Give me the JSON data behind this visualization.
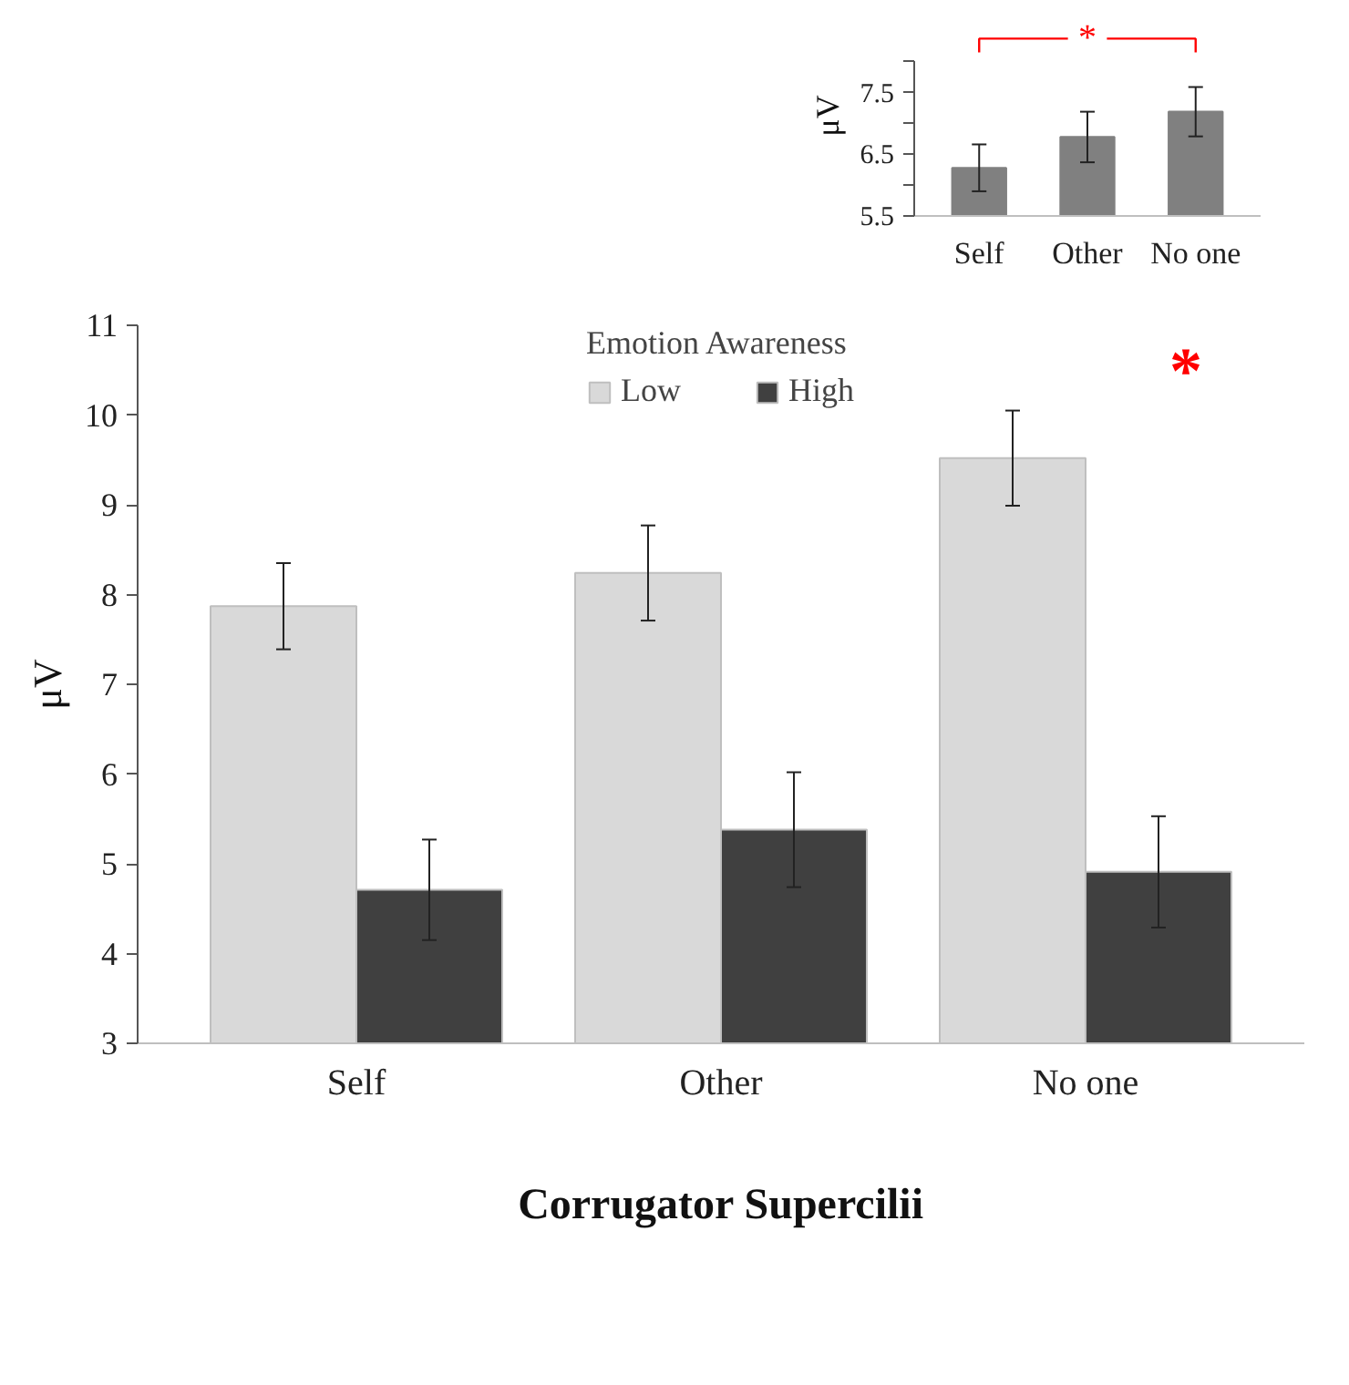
{
  "chart_data": [
    {
      "type": "bar",
      "categories": [
        "Self",
        "Other",
        "No one"
      ],
      "values": [
        6.28,
        6.78,
        7.19
      ],
      "errors": [
        0.38,
        0.41,
        0.4
      ],
      "color": "#808080",
      "ylabel": "μV",
      "ylim": [
        5.5,
        8.0
      ],
      "yticks": [
        5.5,
        {
          "value": 6.0,
          "label": null
        },
        6.5,
        {
          "value": 7.0,
          "label": null
        },
        7.5,
        {
          "value": 8.0,
          "label": null
        }
      ],
      "annotations": [
        "*"
      ]
    },
    {
      "type": "bar",
      "categories": [
        "Self",
        "Other",
        "No one"
      ],
      "series": [
        {
          "name": "Low",
          "color": "#d9d9d9",
          "values": [
            7.87,
            8.24,
            9.52
          ],
          "errors": [
            0.48,
            0.53,
            0.53
          ]
        },
        {
          "name": "High",
          "color": "#404040",
          "values": [
            4.71,
            5.38,
            4.91
          ],
          "errors": [
            0.56,
            0.64,
            0.62
          ]
        }
      ],
      "legend": "top",
      "legend_title": "Emotion Awareness",
      "xlabel": "Corrugator Supercilii",
      "ylabel": "μV",
      "ylim": [
        3,
        11
      ],
      "yticks": [
        3,
        4,
        5,
        6,
        7,
        8,
        9,
        10,
        11
      ],
      "annotations": [
        "*"
      ]
    }
  ]
}
